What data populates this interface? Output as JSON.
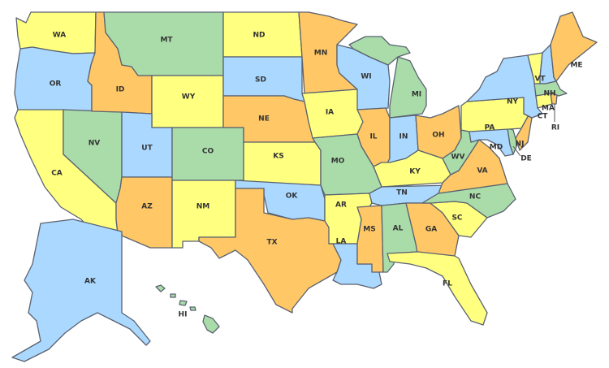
{
  "palette": {
    "yellow": "#ffff80",
    "blue": "#aad8ff",
    "green": "#aadcaa",
    "orange": "#ffc766",
    "border": "#5a6270"
  },
  "states": [
    {
      "abbr": "WA",
      "color": "yellow"
    },
    {
      "abbr": "OR",
      "color": "blue"
    },
    {
      "abbr": "CA",
      "color": "yellow"
    },
    {
      "abbr": "NV",
      "color": "green"
    },
    {
      "abbr": "ID",
      "color": "orange"
    },
    {
      "abbr": "MT",
      "color": "green"
    },
    {
      "abbr": "WY",
      "color": "yellow"
    },
    {
      "abbr": "UT",
      "color": "blue"
    },
    {
      "abbr": "AZ",
      "color": "orange"
    },
    {
      "abbr": "CO",
      "color": "green"
    },
    {
      "abbr": "NM",
      "color": "yellow"
    },
    {
      "abbr": "ND",
      "color": "yellow"
    },
    {
      "abbr": "SD",
      "color": "blue"
    },
    {
      "abbr": "NE",
      "color": "orange"
    },
    {
      "abbr": "KS",
      "color": "yellow"
    },
    {
      "abbr": "OK",
      "color": "blue"
    },
    {
      "abbr": "TX",
      "color": "orange"
    },
    {
      "abbr": "MN",
      "color": "orange"
    },
    {
      "abbr": "IA",
      "color": "yellow"
    },
    {
      "abbr": "MO",
      "color": "green"
    },
    {
      "abbr": "AR",
      "color": "yellow"
    },
    {
      "abbr": "LA",
      "color": "blue"
    },
    {
      "abbr": "WI",
      "color": "blue"
    },
    {
      "abbr": "IL",
      "color": "orange"
    },
    {
      "abbr": "MI",
      "color": "green"
    },
    {
      "abbr": "IN",
      "color": "blue"
    },
    {
      "abbr": "OH",
      "color": "orange"
    },
    {
      "abbr": "KY",
      "color": "yellow"
    },
    {
      "abbr": "TN",
      "color": "blue"
    },
    {
      "abbr": "MS",
      "color": "orange"
    },
    {
      "abbr": "AL",
      "color": "green"
    },
    {
      "abbr": "GA",
      "color": "orange"
    },
    {
      "abbr": "FL",
      "color": "yellow"
    },
    {
      "abbr": "SC",
      "color": "yellow"
    },
    {
      "abbr": "NC",
      "color": "green"
    },
    {
      "abbr": "VA",
      "color": "orange"
    },
    {
      "abbr": "WV",
      "color": "green"
    },
    {
      "abbr": "MD",
      "color": "blue"
    },
    {
      "abbr": "DE",
      "color": "green"
    },
    {
      "abbr": "PA",
      "color": "yellow"
    },
    {
      "abbr": "NJ",
      "color": "orange"
    },
    {
      "abbr": "NY",
      "color": "blue"
    },
    {
      "abbr": "VT",
      "color": "yellow"
    },
    {
      "abbr": "NH",
      "color": "blue"
    },
    {
      "abbr": "ME",
      "color": "orange"
    },
    {
      "abbr": "MA",
      "color": "green"
    },
    {
      "abbr": "CT",
      "color": "yellow"
    },
    {
      "abbr": "RI",
      "color": "orange"
    },
    {
      "abbr": "AK",
      "color": "blue"
    },
    {
      "abbr": "HI",
      "color": "green"
    }
  ]
}
